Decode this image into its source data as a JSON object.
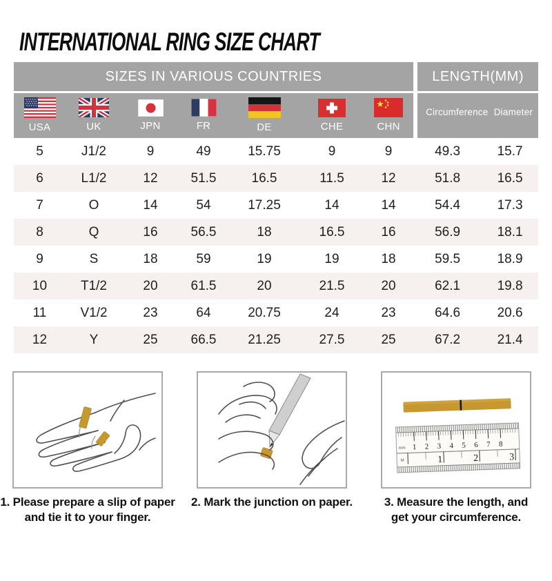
{
  "page": {
    "title": "INTERNATIONAL RING SIZE CHART"
  },
  "colors": {
    "header_bg": "#a4a4a4",
    "stripe_bg": "#f6f1ee",
    "accent_gold": "#c6982f",
    "header_text": "#ffffff",
    "body_text": "#1e1e1e"
  },
  "table": {
    "sizes_group_label": "SIZES IN VARIOUS COUNTRIES",
    "length_group_label": "LENGTH(MM)",
    "countries": [
      {
        "code": "USA",
        "flag_icon": "usa-flag-icon"
      },
      {
        "code": "UK",
        "flag_icon": "uk-flag-icon"
      },
      {
        "code": "JPN",
        "flag_icon": "japan-flag-icon"
      },
      {
        "code": "FR",
        "flag_icon": "france-flag-icon"
      },
      {
        "code": "DE",
        "flag_icon": "germany-flag-icon"
      },
      {
        "code": "CHE",
        "flag_icon": "switzerland-flag-icon"
      },
      {
        "code": "CHN",
        "flag_icon": "china-flag-icon"
      }
    ],
    "length_cols": {
      "circumference": "Circumference",
      "diameter": "Diameter"
    },
    "rows": [
      [
        "5",
        "J1/2",
        "9",
        "49",
        "15.75",
        "9",
        "9",
        "49.3",
        "15.7"
      ],
      [
        "6",
        "L1/2",
        "12",
        "51.5",
        "16.5",
        "11.5",
        "12",
        "51.8",
        "16.5"
      ],
      [
        "7",
        "O",
        "14",
        "54",
        "17.25",
        "14",
        "14",
        "54.4",
        "17.3"
      ],
      [
        "8",
        "Q",
        "16",
        "56.5",
        "18",
        "16.5",
        "16",
        "56.9",
        "18.1"
      ],
      [
        "9",
        "S",
        "18",
        "59",
        "19",
        "19",
        "18",
        "59.5",
        "18.9"
      ],
      [
        "10",
        "T1/2",
        "20",
        "61.5",
        "20",
        "21.5",
        "20",
        "62.1",
        "19.8"
      ],
      [
        "11",
        "V1/2",
        "23",
        "64",
        "20.75",
        "24",
        "23",
        "64.6",
        "20.6"
      ],
      [
        "12",
        "Y",
        "25",
        "66.5",
        "21.25",
        "27.5",
        "25",
        "67.2",
        "21.4"
      ]
    ]
  },
  "instructions": [
    {
      "number": "1",
      "caption": "1. Please prepare a slip of paper\nand tie it to your finger.",
      "illustration": "hand-with-paper-slip"
    },
    {
      "number": "2",
      "caption": "2. Mark the junction on paper.",
      "illustration": "marking-junction-with-pen"
    },
    {
      "number": "3",
      "caption": "3. Measure the length, and\nget your circumference.",
      "illustration": "ruler-measuring-strip"
    }
  ],
  "ruler": {
    "top_unit": "mm",
    "top_numbers": [
      "1",
      "2",
      "3",
      "4",
      "5",
      "6",
      "7",
      "8"
    ],
    "bottom_unit": "M",
    "bottom_numbers": [
      "1",
      "2",
      "3"
    ]
  }
}
